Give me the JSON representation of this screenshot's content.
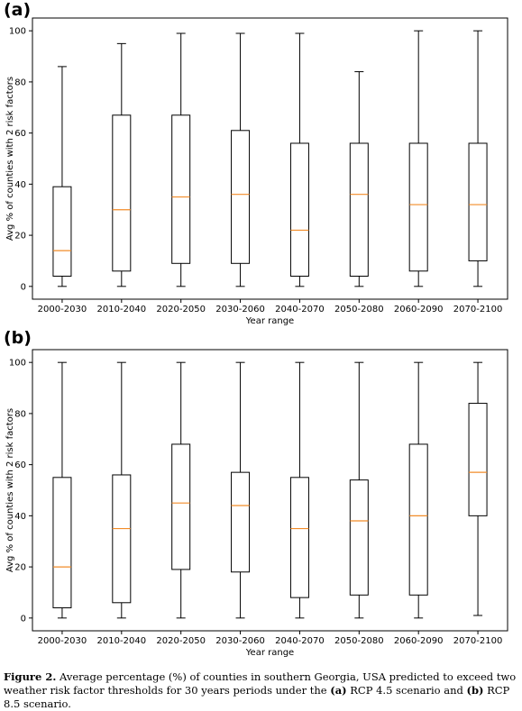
{
  "panels": [
    {
      "label": "(a)"
    },
    {
      "label": "(b)"
    }
  ],
  "chart_data": [
    {
      "type": "boxplot",
      "panel": "(a)",
      "categories": [
        "2000-2030",
        "2010-2040",
        "2020-2050",
        "2030-2060",
        "2040-2070",
        "2050-2080",
        "2060-2090",
        "2070-2100"
      ],
      "boxes": [
        {
          "min": 0,
          "q1": 4,
          "median": 14,
          "q3": 39,
          "max": 86
        },
        {
          "min": 0,
          "q1": 6,
          "median": 30,
          "q3": 67,
          "max": 95
        },
        {
          "min": 0,
          "q1": 9,
          "median": 35,
          "q3": 67,
          "max": 99
        },
        {
          "min": 0,
          "q1": 9,
          "median": 36,
          "q3": 61,
          "max": 99
        },
        {
          "min": 0,
          "q1": 4,
          "median": 22,
          "q3": 56,
          "max": 99
        },
        {
          "min": 0,
          "q1": 4,
          "median": 36,
          "q3": 56,
          "max": 84
        },
        {
          "min": 0,
          "q1": 6,
          "median": 32,
          "q3": 56,
          "max": 100
        },
        {
          "min": 0,
          "q1": 10,
          "median": 32,
          "q3": 56,
          "max": 100
        }
      ],
      "xlabel": "Year range",
      "ylabel": "Avg % of counties with 2 risk factors",
      "yticks": [
        0,
        20,
        40,
        60,
        80,
        100
      ],
      "ylim": [
        -5,
        105
      ],
      "grid": false
    },
    {
      "type": "boxplot",
      "panel": "(b)",
      "categories": [
        "2000-2030",
        "2010-2040",
        "2020-2050",
        "2030-2060",
        "2040-2070",
        "2050-2080",
        "2060-2090",
        "2070-2100"
      ],
      "boxes": [
        {
          "min": 0,
          "q1": 4,
          "median": 20,
          "q3": 55,
          "max": 100
        },
        {
          "min": 0,
          "q1": 6,
          "median": 35,
          "q3": 56,
          "max": 100
        },
        {
          "min": 0,
          "q1": 19,
          "median": 45,
          "q3": 68,
          "max": 100
        },
        {
          "min": 0,
          "q1": 18,
          "median": 44,
          "q3": 57,
          "max": 100
        },
        {
          "min": 0,
          "q1": 8,
          "median": 35,
          "q3": 55,
          "max": 100
        },
        {
          "min": 0,
          "q1": 9,
          "median": 38,
          "q3": 54,
          "max": 100
        },
        {
          "min": 0,
          "q1": 9,
          "median": 40,
          "q3": 68,
          "max": 100
        },
        {
          "min": 1,
          "q1": 40,
          "median": 57,
          "q3": 84,
          "max": 100
        }
      ],
      "xlabel": "Year range",
      "ylabel": "Avg % of counties with 2 risk factors",
      "yticks": [
        0,
        20,
        40,
        60,
        80,
        100
      ],
      "ylim": [
        -5,
        105
      ],
      "grid": false
    }
  ],
  "colors": {
    "median": "#f28c28",
    "box": "#000000"
  },
  "caption": {
    "figure_label": "Figure 2.",
    "text_1": " Average percentage (%) of counties in southern Georgia, USA predicted to exceed two weather risk factor thresholds for 30 years periods under the ",
    "a_label": "(a)",
    "text_2": " RCP 4.5 scenario and ",
    "b_label": "(b)",
    "text_3": " RCP 8.5 scenario."
  }
}
